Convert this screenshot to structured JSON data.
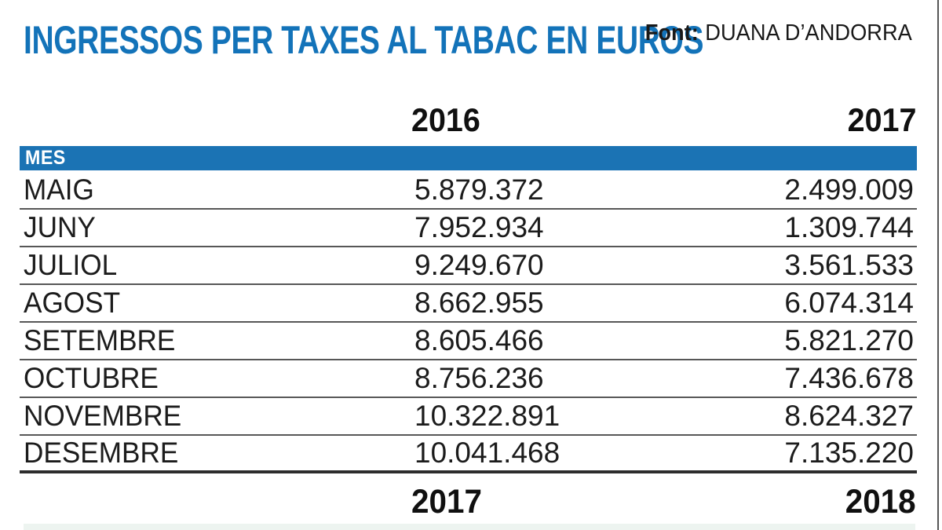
{
  "title": "INGRESSOS PER TAXES AL TABAC EN EUROS",
  "source": {
    "label": "Font:",
    "value": "DUANA D’ANDORRA"
  },
  "colors": {
    "title_blue": "#1373b9",
    "bar_blue": "#1b73b4",
    "row_line": "#575757",
    "footer_line": "#2d2d2d"
  },
  "table": {
    "section_label": "MES",
    "top_years": {
      "col1": "2016",
      "col2": "2017"
    },
    "bottom_years": {
      "col1": "2017",
      "col2": "2018"
    },
    "rows": [
      {
        "month": "MAIG",
        "y1": "5.879.372",
        "y2": "2.499.009"
      },
      {
        "month": "JUNY",
        "y1": "7.952.934",
        "y2": "1.309.744"
      },
      {
        "month": "JULIOL",
        "y1": "9.249.670",
        "y2": "3.561.533"
      },
      {
        "month": "AGOST",
        "y1": "8.662.955",
        "y2": "6.074.314"
      },
      {
        "month": "SETEMBRE",
        "y1": "8.605.466",
        "y2": "5.821.270"
      },
      {
        "month": "OCTUBRE",
        "y1": "8.756.236",
        "y2": "7.436.678"
      },
      {
        "month": "NOVEMBRE",
        "y1": "10.322.891",
        "y2": "8.624.327"
      },
      {
        "month": "DESEMBRE",
        "y1": "10.041.468",
        "y2": "7.135.220"
      }
    ]
  },
  "chart_data": {
    "type": "table",
    "title": "INGRESSOS PER TAXES AL TABAC EN EUROS",
    "source": "Font: DUANA D’ANDORRA",
    "row_label_header": "MES",
    "unit": "EUR",
    "categories": [
      "MAIG",
      "JUNY",
      "JULIOL",
      "AGOST",
      "SETEMBRE",
      "OCTUBRE",
      "NOVEMBRE",
      "DESEMBRE"
    ],
    "series": [
      {
        "name": "2016",
        "footer_year": "2017",
        "values": [
          5879372,
          7952934,
          9249670,
          8662955,
          8605466,
          8756236,
          10322891,
          10041468
        ]
      },
      {
        "name": "2017",
        "footer_year": "2018",
        "values": [
          2499009,
          1309744,
          3561533,
          6074314,
          5821270,
          7436678,
          8624327,
          7135220
        ]
      }
    ]
  }
}
